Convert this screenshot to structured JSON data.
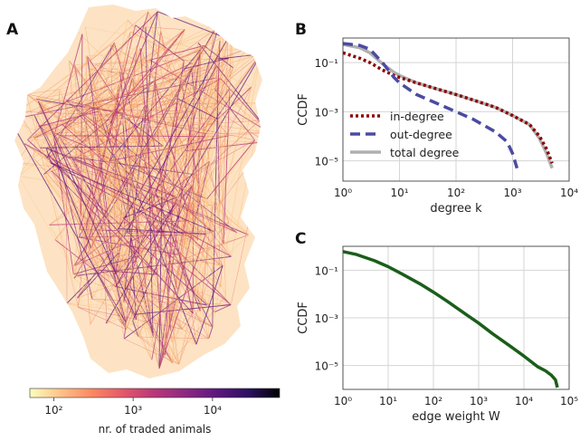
{
  "panels": {
    "a_letter": "A",
    "b_letter": "B",
    "c_letter": "C"
  },
  "map": {
    "colorbar_label": "nr. of traded animals",
    "colorbar_ticks": [
      "10²",
      "10³",
      "10⁴"
    ],
    "colorbar_tick_values": [
      100,
      1000,
      10000
    ],
    "colorbar_range": [
      50,
      70000
    ],
    "colormap": [
      "#fcfdbf",
      "#fec287",
      "#fb8761",
      "#e5566a",
      "#b73779",
      "#8c2981",
      "#5d177f",
      "#2c1160",
      "#000004"
    ]
  },
  "chart_data": [
    {
      "type": "line",
      "panel": "B",
      "title": "",
      "xlabel": "degree k",
      "ylabel": "CCDF",
      "xscale": "log",
      "yscale": "log",
      "xlim": [
        1,
        10000
      ],
      "ylim": [
        1.5e-06,
        1
      ],
      "xticks": [
        1,
        10,
        100,
        1000,
        10000
      ],
      "xtick_labels": [
        "10⁰",
        "10¹",
        "10²",
        "10³",
        "10⁴"
      ],
      "yticks": [
        1e-05,
        0.001,
        0.1
      ],
      "ytick_labels": [
        "10⁻⁵",
        "10⁻³",
        "10⁻¹"
      ],
      "grid": true,
      "legend": "lower-left",
      "series": [
        {
          "name": "total degree",
          "color": "#b0b0b0",
          "dash": "solid",
          "x": [
            1,
            2,
            3,
            5,
            8,
            10,
            20,
            50,
            100,
            200,
            500,
            1000,
            2000,
            3000,
            4000,
            5000
          ],
          "y": [
            0.55,
            0.4,
            0.25,
            0.09,
            0.04,
            0.03,
            0.015,
            0.008,
            0.005,
            0.003,
            0.0015,
            0.0007,
            0.0003,
            8e-05,
            2e-05,
            5e-06
          ]
        },
        {
          "name": "in-degree",
          "color": "#8b0000",
          "dash": "dotted",
          "x": [
            1,
            2,
            3,
            5,
            8,
            10,
            20,
            50,
            100,
            200,
            500,
            1000,
            2000,
            3000,
            4000,
            5000
          ],
          "y": [
            0.25,
            0.15,
            0.1,
            0.05,
            0.03,
            0.025,
            0.015,
            0.008,
            0.005,
            0.003,
            0.0015,
            0.0007,
            0.0003,
            0.0001,
            3e-05,
            8e-06
          ]
        },
        {
          "name": "out-degree",
          "color": "#4b4ba3",
          "dash": "dashed",
          "x": [
            1,
            2,
            3,
            5,
            8,
            10,
            20,
            50,
            100,
            200,
            500,
            800,
            1000,
            1200
          ],
          "y": [
            0.6,
            0.5,
            0.35,
            0.1,
            0.025,
            0.015,
            0.005,
            0.002,
            0.001,
            0.0005,
            0.00015,
            6e-05,
            2e-05,
            5e-06
          ]
        }
      ]
    },
    {
      "type": "line",
      "panel": "C",
      "title": "",
      "xlabel": "edge weight W",
      "ylabel": "CCDF",
      "xscale": "log",
      "yscale": "log",
      "xlim": [
        1,
        100000
      ],
      "ylim": [
        1e-06,
        1
      ],
      "xticks": [
        1,
        10,
        100,
        1000,
        10000,
        100000
      ],
      "xtick_labels": [
        "10⁰",
        "10¹",
        "10²",
        "10³",
        "10⁴",
        "10⁵"
      ],
      "yticks": [
        1e-05,
        0.001,
        0.1
      ],
      "ytick_labels": [
        "10⁻⁵",
        "10⁻³",
        "10⁻¹"
      ],
      "grid": true,
      "series": [
        {
          "color": "#1a5e1a",
          "x": [
            1,
            2,
            5,
            10,
            20,
            50,
            100,
            200,
            500,
            1000,
            2000,
            5000,
            10000,
            20000,
            30000,
            40000,
            50000,
            55000
          ],
          "y": [
            0.6,
            0.45,
            0.25,
            0.14,
            0.07,
            0.027,
            0.012,
            0.005,
            0.0015,
            0.0006,
            0.00022,
            6.5e-05,
            2.5e-05,
            9e-06,
            6e-06,
            4e-06,
            2.5e-06,
            1.2e-06
          ]
        }
      ]
    }
  ]
}
